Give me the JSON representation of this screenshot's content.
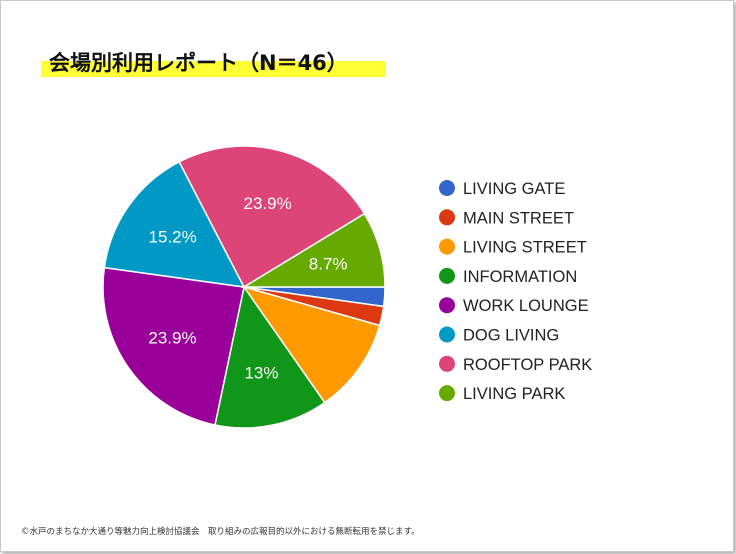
{
  "title": "会場別利用レポート（N＝46）",
  "footer": "©水戸のまちなか大通り等魅力向上検討協議会　取り組みの広報目的以外における無断転用を禁じます。",
  "chart_data": {
    "type": "pie",
    "title": "会場別利用レポート（N＝46）",
    "legend_position": "right",
    "slices": [
      {
        "label": "LIVING GATE",
        "value": 2.2,
        "color": "#3366cc",
        "data_label": ""
      },
      {
        "label": "MAIN STREET",
        "value": 2.2,
        "color": "#dc3912",
        "data_label": ""
      },
      {
        "label": "LIVING STREET",
        "value": 10.9,
        "color": "#ff9900",
        "data_label": ""
      },
      {
        "label": "INFORMATION",
        "value": 13.0,
        "color": "#109618",
        "data_label": "13%"
      },
      {
        "label": "WORK LOUNGE",
        "value": 23.9,
        "color": "#990099",
        "data_label": "23.9%"
      },
      {
        "label": "DOG LIVING",
        "value": 15.2,
        "color": "#0099c6",
        "data_label": "15.2%"
      },
      {
        "label": "ROOFTOP PARK",
        "value": 23.9,
        "color": "#dd4477",
        "data_label": "23.9%"
      },
      {
        "label": "LIVING PARK",
        "value": 8.7,
        "color": "#66aa00",
        "data_label": "8.7%"
      }
    ]
  }
}
